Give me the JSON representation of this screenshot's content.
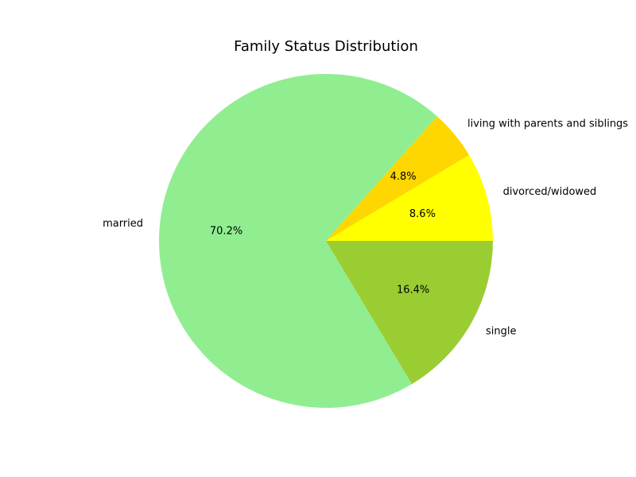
{
  "chart_data": {
    "type": "pie",
    "title": "Family Status Distribution",
    "categories": [
      "divorced/widowed",
      "living with parents and siblings",
      "married",
      "single"
    ],
    "values": [
      8.6,
      4.8,
      70.2,
      16.4
    ],
    "percent_labels": [
      "8.6%",
      "4.8%",
      "70.2%",
      "16.4%"
    ],
    "colors": [
      "#ffff00",
      "#ffd700",
      "#90ee90",
      "#9acd32"
    ],
    "start_angle_deg": 0,
    "direction": "counterclockwise",
    "legend": "none"
  }
}
